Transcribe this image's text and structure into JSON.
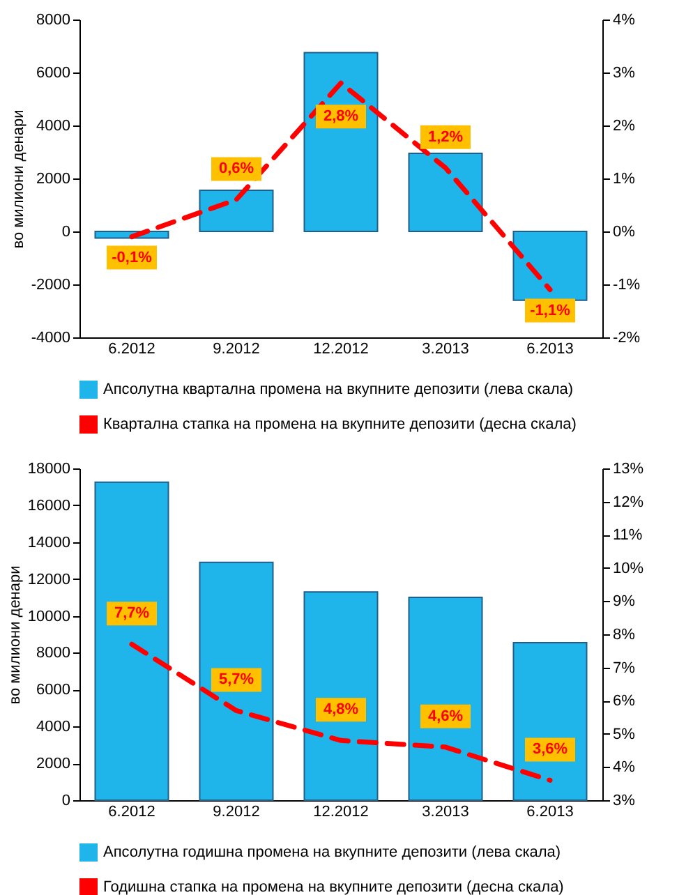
{
  "chart_data": [
    {
      "type": "bar",
      "ylabel": "во милиони денари",
      "categories": [
        "6.2012",
        "9.2012",
        "12.2012",
        "3.2013",
        "6.2013"
      ],
      "ylim": [
        -4000,
        8000
      ],
      "yticks": [
        -4000,
        -2000,
        0,
        2000,
        4000,
        6000,
        8000
      ],
      "y2lim": [
        -2,
        4
      ],
      "y2ticks": [
        {
          "value": -2,
          "label": "-2%"
        },
        {
          "value": -1,
          "label": "-1%"
        },
        {
          "value": 0,
          "label": "0%"
        },
        {
          "value": 1,
          "label": "1%"
        },
        {
          "value": 2,
          "label": "2%"
        },
        {
          "value": 3,
          "label": "3%"
        },
        {
          "value": 4,
          "label": "4%"
        }
      ],
      "grid": false,
      "legend": "bottom",
      "series": [
        {
          "name": "Апсолутна квартална   промена на вкупните депозити (лева скала)",
          "color": "#1fb4ea",
          "values": [
            -250,
            1550,
            6750,
            2950,
            -2600
          ]
        },
        {
          "type": "line",
          "axis": "y2",
          "line_style": "dashed",
          "marker": "none",
          "name": "Квартална стапка на промена на вкупните депозити (десна скала)",
          "color": "#ff0000",
          "values": [
            -0.1,
            0.6,
            2.8,
            1.2,
            -1.1
          ],
          "value_labels": [
            "-0,1%",
            "0,6%",
            "2,8%",
            "1,2%",
            "-1,1%"
          ]
        }
      ]
    },
    {
      "type": "bar",
      "ylabel": "во милиони денари",
      "categories": [
        "6.2012",
        "9.2012",
        "12.2012",
        "3.2013",
        "6.2013"
      ],
      "ylim": [
        0,
        18000
      ],
      "yticks": [
        0,
        2000,
        4000,
        6000,
        8000,
        10000,
        12000,
        14000,
        16000,
        18000
      ],
      "y2lim": [
        3,
        13
      ],
      "y2ticks": [
        {
          "value": 3,
          "label": "3%"
        },
        {
          "value": 4,
          "label": "4%"
        },
        {
          "value": 5,
          "label": "5%"
        },
        {
          "value": 6,
          "label": "6%"
        },
        {
          "value": 7,
          "label": "7%"
        },
        {
          "value": 8,
          "label": "8%"
        },
        {
          "value": 9,
          "label": "9%"
        },
        {
          "value": 10,
          "label": "10%"
        },
        {
          "value": 11,
          "label": "11%"
        },
        {
          "value": 12,
          "label": "12%"
        },
        {
          "value": 13,
          "label": "13%"
        }
      ],
      "grid": false,
      "legend": "bottom",
      "series": [
        {
          "name": "Апсолутна годишна   промена на вкупните депозити (лева скала)",
          "color": "#1fb4ea",
          "values": [
            17250,
            12900,
            11300,
            11000,
            8550
          ]
        },
        {
          "type": "line",
          "axis": "y2",
          "line_style": "dashed",
          "marker": "none",
          "name": "Годишна стапка на промена на вкупните депозити (десна скала)",
          "color": "#ff0000",
          "values": [
            7.7,
            5.7,
            4.8,
            4.6,
            3.6
          ],
          "value_labels": [
            "7,7%",
            "5,7%",
            "4,8%",
            "4,6%",
            "3,6%"
          ]
        }
      ]
    }
  ]
}
